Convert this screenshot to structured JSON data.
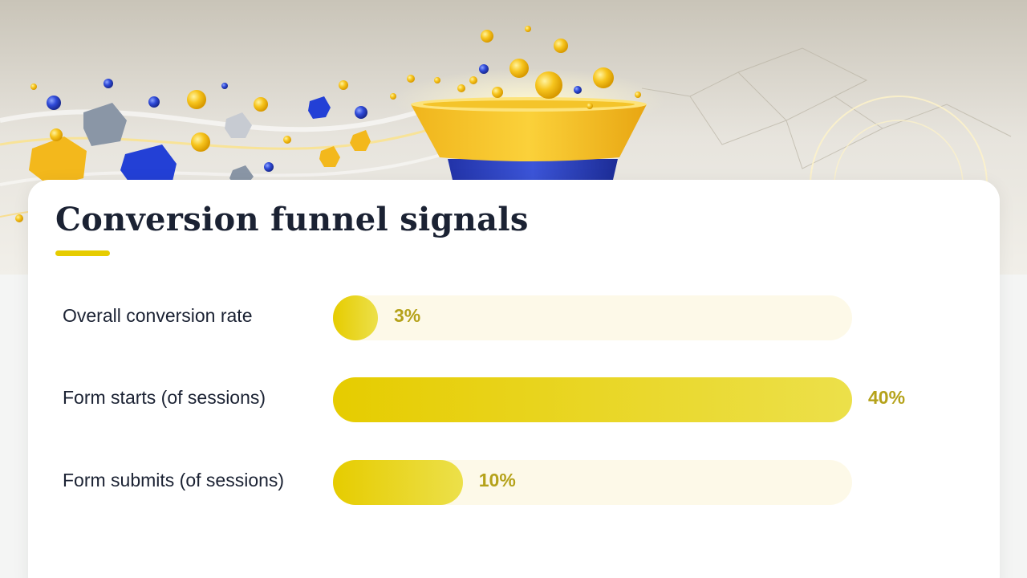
{
  "colors": {
    "accent": "#e6cc00",
    "accent_light": "#ece04a",
    "track": "#fdf9e8",
    "value_text": "#b5a21a",
    "title_text": "#1b2233",
    "hero_bg": "#e7e4dd"
  },
  "hero": {
    "icon": "funnel-illustration"
  },
  "chart_data": {
    "type": "bar",
    "orientation": "horizontal",
    "title": "Conversion funnel signals",
    "categories": [
      "Overall conversion rate",
      "Form starts (of sessions)",
      "Form submits (of sessions)"
    ],
    "values": [
      3,
      40,
      10
    ],
    "value_labels": [
      "3%",
      "40%",
      "10%"
    ],
    "xlim": [
      0,
      40
    ],
    "grid": false
  }
}
